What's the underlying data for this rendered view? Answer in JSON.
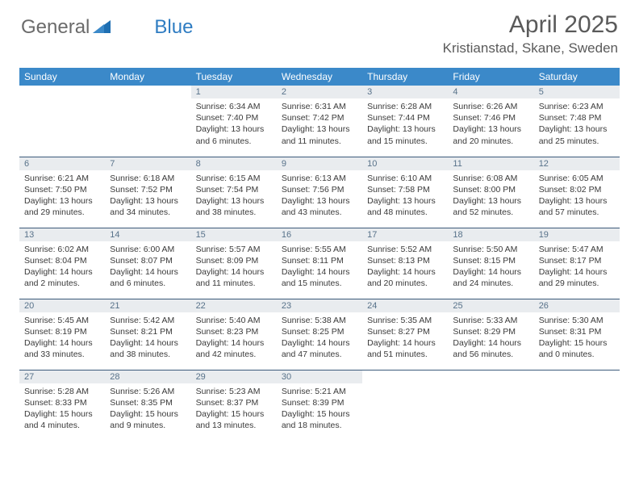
{
  "brand": {
    "part1": "General",
    "part2": "Blue"
  },
  "title": "April 2025",
  "location": "Kristianstad, Skane, Sweden",
  "colors": {
    "header_bg": "#3b89c9",
    "header_text": "#ffffff",
    "daynum_bg": "#e9ecef",
    "daynum_text": "#58728a",
    "divider": "#3b5a7a",
    "title_text": "#5a5a5a",
    "body_text": "#3a3a3a"
  },
  "weekdays": [
    "Sunday",
    "Monday",
    "Tuesday",
    "Wednesday",
    "Thursday",
    "Friday",
    "Saturday"
  ],
  "weeks": [
    [
      null,
      null,
      {
        "n": "1",
        "sr": "6:34 AM",
        "ss": "7:40 PM",
        "dl": "13 hours and 6 minutes."
      },
      {
        "n": "2",
        "sr": "6:31 AM",
        "ss": "7:42 PM",
        "dl": "13 hours and 11 minutes."
      },
      {
        "n": "3",
        "sr": "6:28 AM",
        "ss": "7:44 PM",
        "dl": "13 hours and 15 minutes."
      },
      {
        "n": "4",
        "sr": "6:26 AM",
        "ss": "7:46 PM",
        "dl": "13 hours and 20 minutes."
      },
      {
        "n": "5",
        "sr": "6:23 AM",
        "ss": "7:48 PM",
        "dl": "13 hours and 25 minutes."
      }
    ],
    [
      {
        "n": "6",
        "sr": "6:21 AM",
        "ss": "7:50 PM",
        "dl": "13 hours and 29 minutes."
      },
      {
        "n": "7",
        "sr": "6:18 AM",
        "ss": "7:52 PM",
        "dl": "13 hours and 34 minutes."
      },
      {
        "n": "8",
        "sr": "6:15 AM",
        "ss": "7:54 PM",
        "dl": "13 hours and 38 minutes."
      },
      {
        "n": "9",
        "sr": "6:13 AM",
        "ss": "7:56 PM",
        "dl": "13 hours and 43 minutes."
      },
      {
        "n": "10",
        "sr": "6:10 AM",
        "ss": "7:58 PM",
        "dl": "13 hours and 48 minutes."
      },
      {
        "n": "11",
        "sr": "6:08 AM",
        "ss": "8:00 PM",
        "dl": "13 hours and 52 minutes."
      },
      {
        "n": "12",
        "sr": "6:05 AM",
        "ss": "8:02 PM",
        "dl": "13 hours and 57 minutes."
      }
    ],
    [
      {
        "n": "13",
        "sr": "6:02 AM",
        "ss": "8:04 PM",
        "dl": "14 hours and 2 minutes."
      },
      {
        "n": "14",
        "sr": "6:00 AM",
        "ss": "8:07 PM",
        "dl": "14 hours and 6 minutes."
      },
      {
        "n": "15",
        "sr": "5:57 AM",
        "ss": "8:09 PM",
        "dl": "14 hours and 11 minutes."
      },
      {
        "n": "16",
        "sr": "5:55 AM",
        "ss": "8:11 PM",
        "dl": "14 hours and 15 minutes."
      },
      {
        "n": "17",
        "sr": "5:52 AM",
        "ss": "8:13 PM",
        "dl": "14 hours and 20 minutes."
      },
      {
        "n": "18",
        "sr": "5:50 AM",
        "ss": "8:15 PM",
        "dl": "14 hours and 24 minutes."
      },
      {
        "n": "19",
        "sr": "5:47 AM",
        "ss": "8:17 PM",
        "dl": "14 hours and 29 minutes."
      }
    ],
    [
      {
        "n": "20",
        "sr": "5:45 AM",
        "ss": "8:19 PM",
        "dl": "14 hours and 33 minutes."
      },
      {
        "n": "21",
        "sr": "5:42 AM",
        "ss": "8:21 PM",
        "dl": "14 hours and 38 minutes."
      },
      {
        "n": "22",
        "sr": "5:40 AM",
        "ss": "8:23 PM",
        "dl": "14 hours and 42 minutes."
      },
      {
        "n": "23",
        "sr": "5:38 AM",
        "ss": "8:25 PM",
        "dl": "14 hours and 47 minutes."
      },
      {
        "n": "24",
        "sr": "5:35 AM",
        "ss": "8:27 PM",
        "dl": "14 hours and 51 minutes."
      },
      {
        "n": "25",
        "sr": "5:33 AM",
        "ss": "8:29 PM",
        "dl": "14 hours and 56 minutes."
      },
      {
        "n": "26",
        "sr": "5:30 AM",
        "ss": "8:31 PM",
        "dl": "15 hours and 0 minutes."
      }
    ],
    [
      {
        "n": "27",
        "sr": "5:28 AM",
        "ss": "8:33 PM",
        "dl": "15 hours and 4 minutes."
      },
      {
        "n": "28",
        "sr": "5:26 AM",
        "ss": "8:35 PM",
        "dl": "15 hours and 9 minutes."
      },
      {
        "n": "29",
        "sr": "5:23 AM",
        "ss": "8:37 PM",
        "dl": "15 hours and 13 minutes."
      },
      {
        "n": "30",
        "sr": "5:21 AM",
        "ss": "8:39 PM",
        "dl": "15 hours and 18 minutes."
      },
      null,
      null,
      null
    ]
  ],
  "labels": {
    "sunrise": "Sunrise:",
    "sunset": "Sunset:",
    "daylight": "Daylight:"
  }
}
